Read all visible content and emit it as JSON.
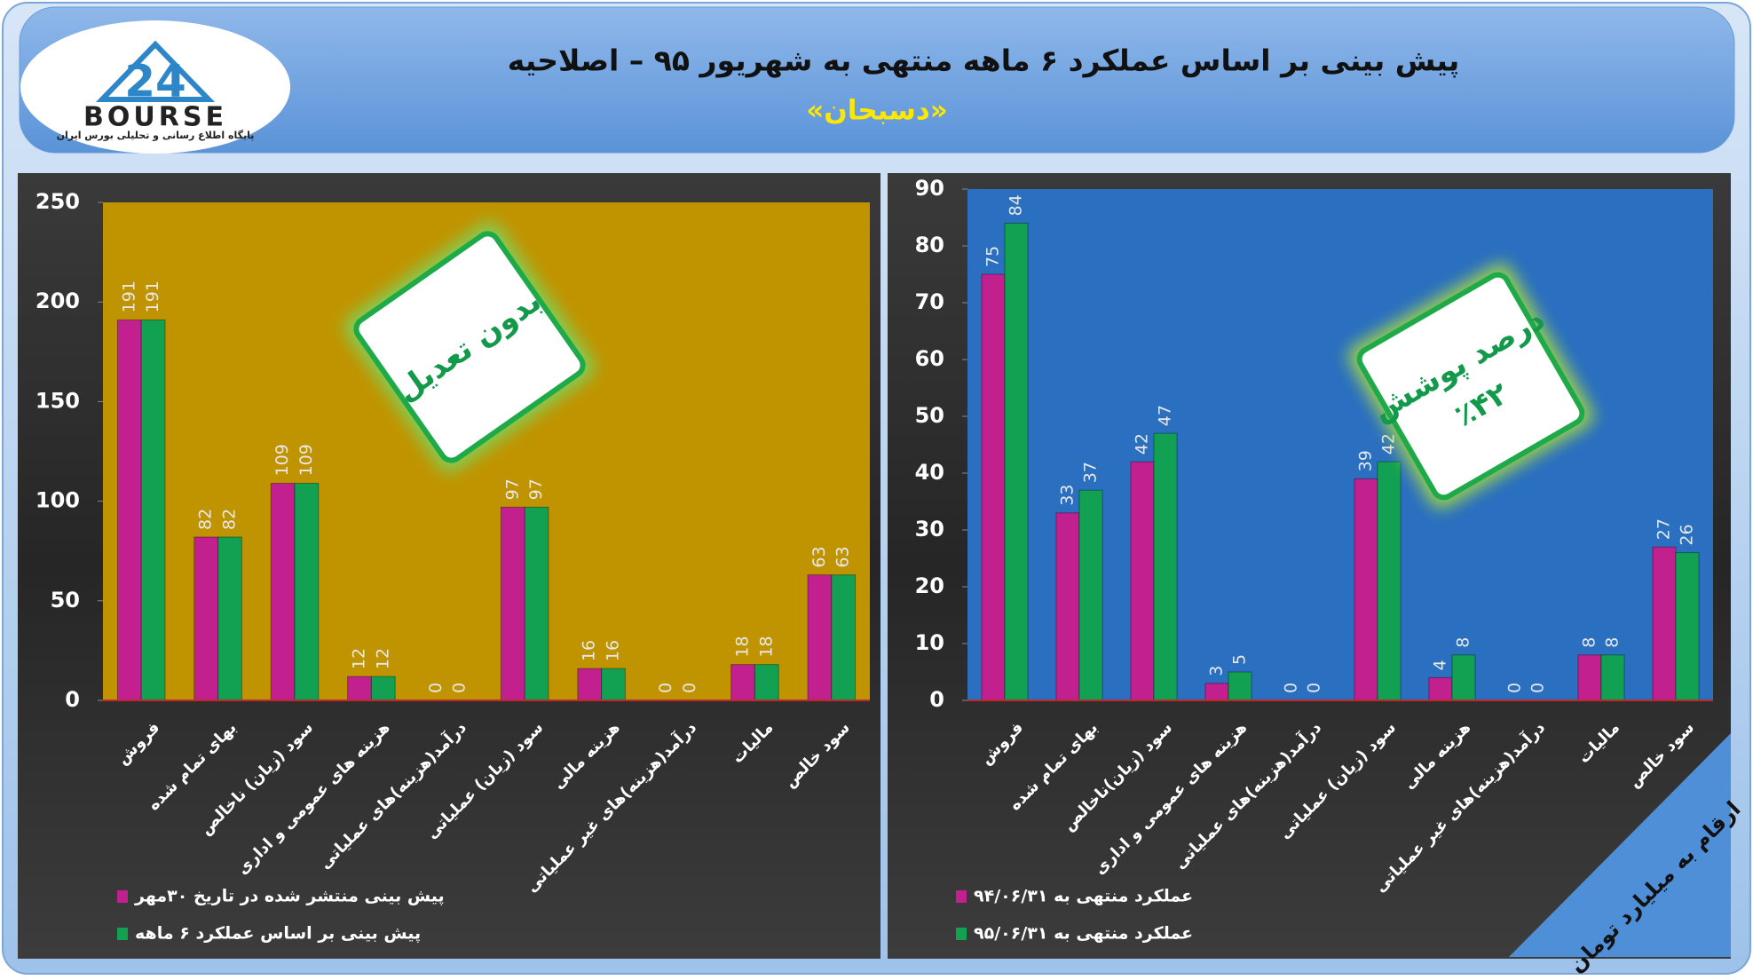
{
  "header": {
    "title": "پیش بینی بر اساس عملکرد ۶ ماهه منتهی به شهریور ۹۵ – اصلاحیه",
    "subtitle": "«دسبحان»"
  },
  "logo": {
    "number": "24",
    "name": "BOURSE",
    "tagline": "پایگاه اطلاع رسانی و تحلیلی بورس ایران"
  },
  "note": "ارقام به میلیارد تومان",
  "chart_data": [
    {
      "type": "bar",
      "plot_color": "#c09400",
      "annotation": [
        "بدون تعدیل"
      ],
      "categories": [
        "فروش",
        "بهای تمام شده",
        "سود (زیان) ناخالص",
        "هزینه های عمومی و اداری",
        "درآمد(هزینه)های عملیاتی",
        "سود (زیان) عملیاتی",
        "هزینه مالی",
        "درآمد(هزینه)های غیر عملیاتی",
        "مالیات",
        "سود خالص"
      ],
      "series": [
        {
          "name": "پیش بینی منتشر شده در تاریخ ۳۰مهر",
          "color": "#c2208f",
          "values": [
            191,
            82,
            109,
            12,
            0,
            97,
            16,
            0,
            18,
            63
          ]
        },
        {
          "name": "پیش بینی بر اساس عملکرد ۶ ماهه",
          "color": "#12a052",
          "values": [
            191,
            82,
            109,
            12,
            0,
            97,
            16,
            0,
            18,
            63
          ]
        }
      ],
      "ylim": [
        0,
        250
      ],
      "yticks": [
        0,
        50,
        100,
        150,
        200,
        250
      ]
    },
    {
      "type": "bar",
      "plot_color": "#2a6fc0",
      "annotation": [
        "درصد پوشش",
        "٪۴۲"
      ],
      "categories": [
        "فروش",
        "بهای تمام شده",
        "سود (زیان)ناخالص",
        "هزینه های عمومی و اداری",
        "درآمد(هزینه)های عملیاتی",
        "سود (زیان) عملیاتی",
        "هزینه مالی",
        "درآمد(هزینه)های غیر عملیاتی",
        "مالیات",
        "سود خالص"
      ],
      "series": [
        {
          "name": "عملکرد منتهی به ۹۴/۰۶/۳۱",
          "color": "#c2208f",
          "values": [
            75,
            33,
            42,
            3,
            0,
            39,
            4,
            0,
            8,
            27
          ]
        },
        {
          "name": "عملکرد منتهی به ۹۵/۰۶/۳۱",
          "color": "#12a052",
          "values": [
            84,
            37,
            47,
            5,
            0,
            42,
            8,
            0,
            8,
            26
          ]
        }
      ],
      "ylim": [
        0,
        90
      ],
      "yticks": [
        0,
        10,
        20,
        30,
        40,
        50,
        60,
        70,
        80,
        90
      ]
    }
  ]
}
